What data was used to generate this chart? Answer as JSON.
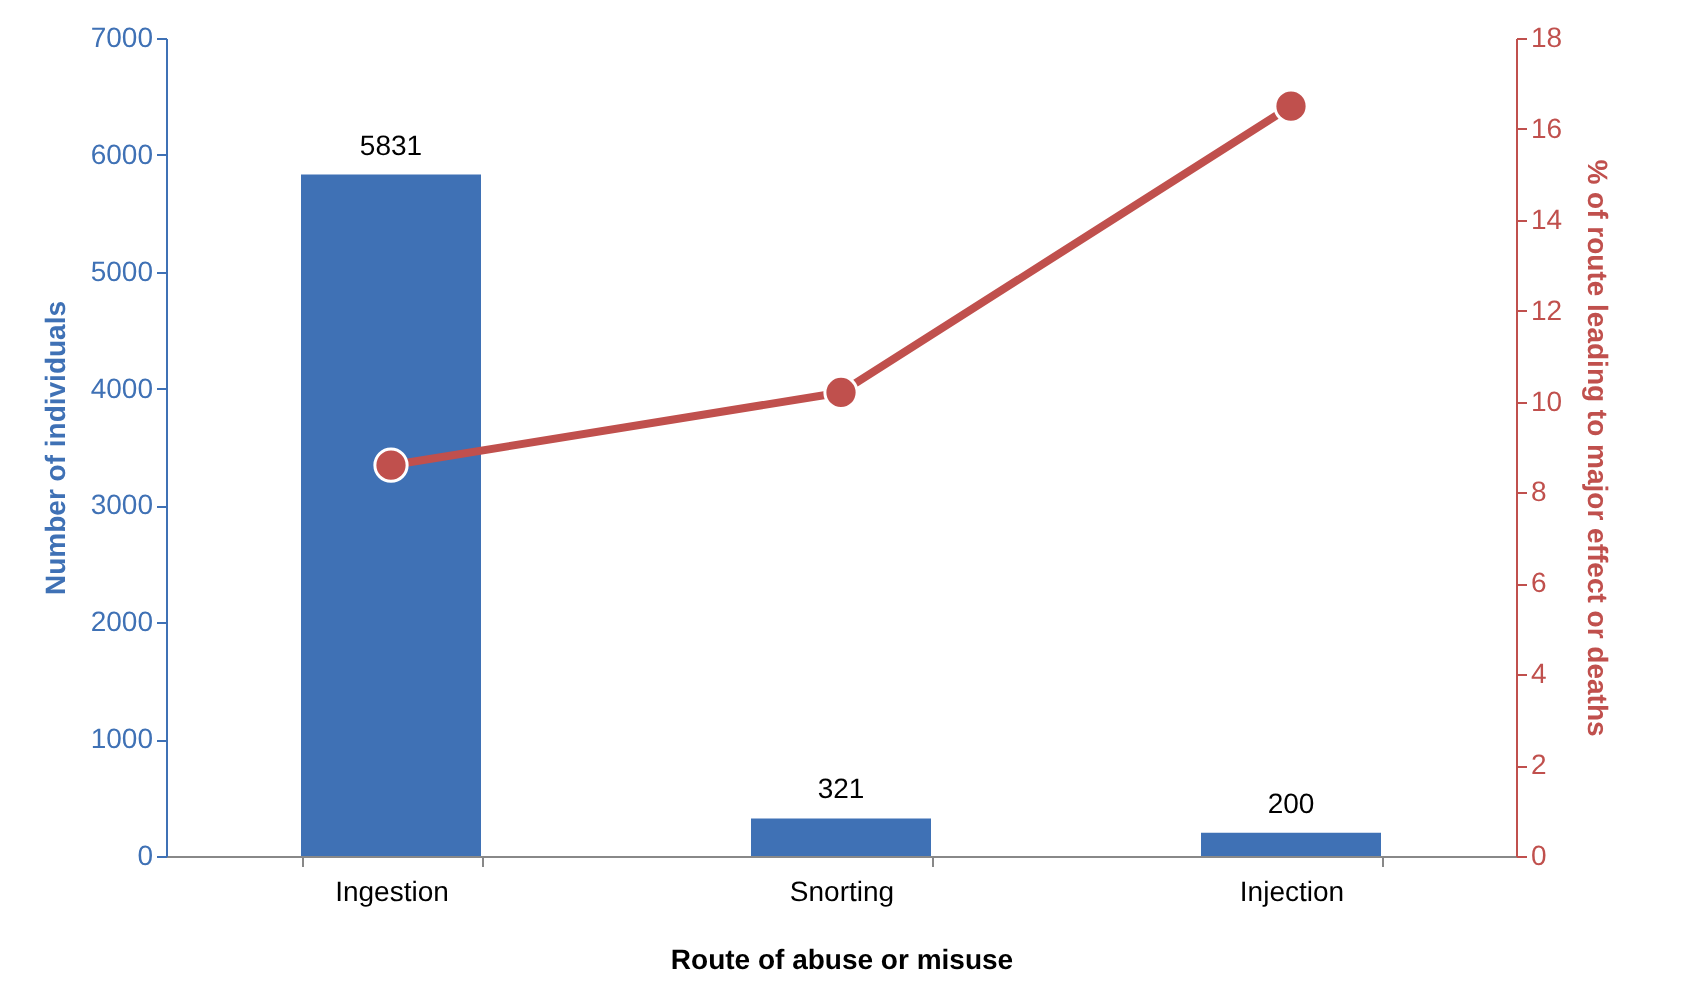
{
  "chart_data": {
    "type": "bar",
    "xlabel": "Route of abuse or misuse",
    "ylabel": "Number of individuals",
    "y2label": "% of route leading to major effect or deaths",
    "categories": [
      "Ingestion",
      "Snorting",
      "Injection"
    ],
    "series": [
      {
        "color": "#3f71b5",
        "values": [
          5831,
          321,
          200
        ],
        "value_labels": [
          "5831",
          "321",
          "200"
        ]
      },
      {
        "type": "line",
        "axis": "y2",
        "color": "#c0504d",
        "values": [
          8.6,
          10.2,
          16.5
        ],
        "marker": "circle"
      }
    ],
    "ylim": [
      0,
      7000
    ],
    "yticks": [
      0,
      1000,
      2000,
      3000,
      4000,
      5000,
      6000,
      7000
    ],
    "y2lim": [
      0,
      18
    ],
    "y2ticks": [
      0,
      2,
      4,
      6,
      8,
      10,
      12,
      14,
      16,
      18
    ],
    "grid": false
  }
}
